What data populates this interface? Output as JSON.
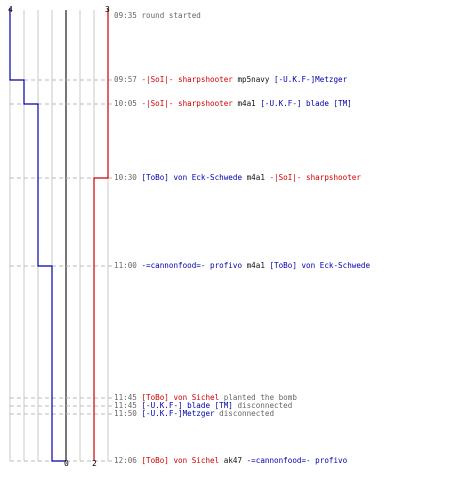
{
  "colors": {
    "team_blue": "#0000aa",
    "team_red": "#cc0000",
    "text_gray": "#666666",
    "text_black": "#111111",
    "grid": "#c8c8c8",
    "guide": "#bbbbbb",
    "axis": "#777777"
  },
  "counts": {
    "blue_start": "4",
    "red_start": "3",
    "blue_end": "0",
    "red_end": "2"
  },
  "events": [
    {
      "time": "09:35",
      "bv": 4,
      "rv": 3,
      "parts": [
        {
          "text": "round started",
          "c": "gray"
        }
      ]
    },
    {
      "time": "09:57",
      "bv": 3,
      "rv": 3,
      "parts": [
        {
          "text": "-|SoI|- sharpshooter",
          "c": "red"
        },
        {
          "text": " mp5navy ",
          "c": "black"
        },
        {
          "text": "[-U.K.F-]Metzger",
          "c": "blue"
        }
      ]
    },
    {
      "time": "10:05",
      "bv": 2,
      "rv": 3,
      "parts": [
        {
          "text": "-|SoI|- sharpshooter",
          "c": "red"
        },
        {
          "text": " m4a1 ",
          "c": "black"
        },
        {
          "text": "[-U.K.F-] blade [TM]",
          "c": "blue"
        }
      ]
    },
    {
      "time": "10:30",
      "bv": 2,
      "rv": 2,
      "parts": [
        {
          "text": "[ToBo] von Eck-Schwede",
          "c": "blue"
        },
        {
          "text": " m4a1 ",
          "c": "black"
        },
        {
          "text": "-|SoI|- sharpshooter",
          "c": "red"
        }
      ]
    },
    {
      "time": "11:00",
      "bv": 1,
      "rv": 2,
      "parts": [
        {
          "text": "-=cannonfood=- profivo",
          "c": "blue"
        },
        {
          "text": " m4a1 ",
          "c": "black"
        },
        {
          "text": "[ToBo] von Eck-Schwede",
          "c": "blue"
        }
      ]
    },
    {
      "time": "11:45",
      "bv": 1,
      "rv": 2,
      "parts": [
        {
          "text": "[ToBo] von Sichel",
          "c": "red"
        },
        {
          "text": " planted the bomb",
          "c": "gray"
        }
      ]
    },
    {
      "time": "11:45",
      "bv": 1,
      "rv": 2,
      "parts": [
        {
          "text": "[-U.K.F-] blade [TM]",
          "c": "blue"
        },
        {
          "text": " disconnected",
          "c": "gray"
        }
      ]
    },
    {
      "time": "11:50",
      "bv": 1,
      "rv": 2,
      "parts": [
        {
          "text": "[-U.K.F-]Metzger",
          "c": "blue"
        },
        {
          "text": " disconnected",
          "c": "gray"
        }
      ]
    },
    {
      "time": "12:06",
      "bv": 0,
      "rv": 2,
      "parts": [
        {
          "text": "[ToBo] von Sichel",
          "c": "red"
        },
        {
          "text": " ak47 ",
          "c": "black"
        },
        {
          "text": "-=cannonfood=- profivo",
          "c": "blue"
        }
      ]
    }
  ]
}
